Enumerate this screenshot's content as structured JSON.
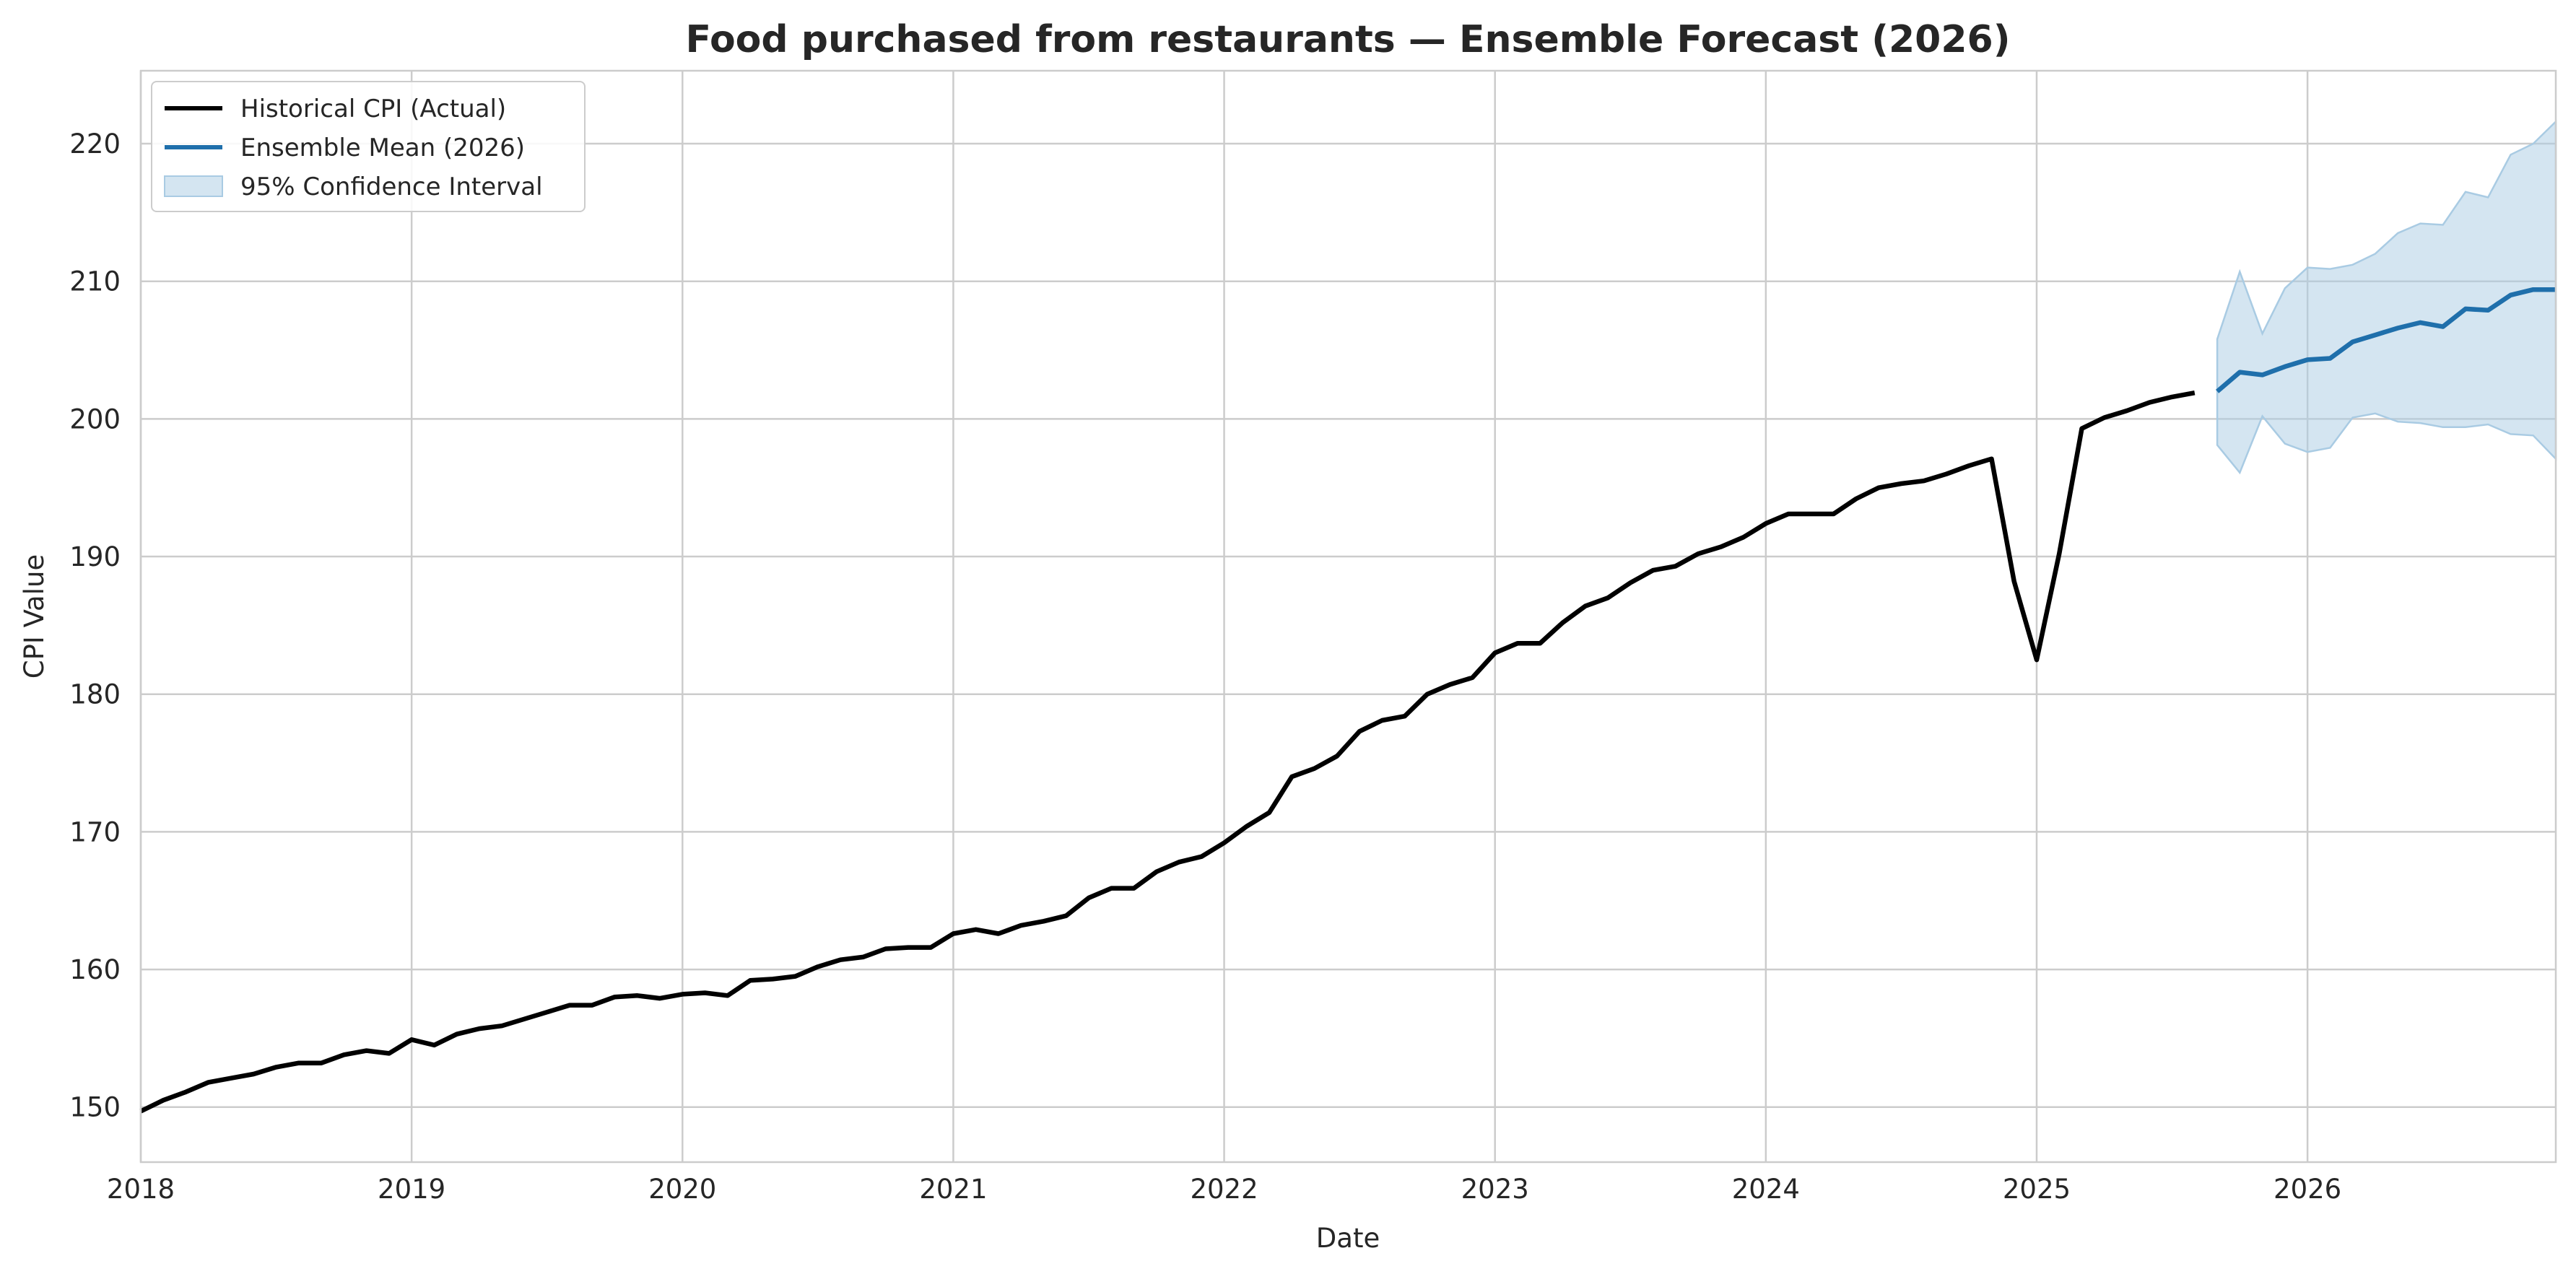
{
  "chart_data": {
    "type": "line",
    "title": "Food purchased from restaurants — Ensemble Forecast (2026)",
    "xlabel": "Date",
    "ylabel": "CPI Value",
    "xlim": [
      "2018-01",
      "2026-12"
    ],
    "ylim": [
      146,
      225.3
    ],
    "grid": true,
    "legend_position": "top-left",
    "x_ticks": [
      "2018",
      "2019",
      "2020",
      "2021",
      "2022",
      "2023",
      "2024",
      "2025",
      "2026"
    ],
    "y_ticks": [
      150,
      160,
      170,
      180,
      190,
      200,
      210,
      220
    ],
    "series": [
      {
        "name": "Historical CPI (Actual)",
        "color": "#000000",
        "style": "line",
        "points": [
          [
            "2018-01",
            149.7
          ],
          [
            "2018-02",
            150.5
          ],
          [
            "2018-03",
            151.1
          ],
          [
            "2018-04",
            151.8
          ],
          [
            "2018-05",
            152.1
          ],
          [
            "2018-06",
            152.4
          ],
          [
            "2018-07",
            152.9
          ],
          [
            "2018-08",
            153.2
          ],
          [
            "2018-09",
            153.2
          ],
          [
            "2018-10",
            153.8
          ],
          [
            "2018-11",
            154.1
          ],
          [
            "2018-12",
            153.9
          ],
          [
            "2019-01",
            154.9
          ],
          [
            "2019-02",
            154.5
          ],
          [
            "2019-03",
            155.3
          ],
          [
            "2019-04",
            155.7
          ],
          [
            "2019-05",
            155.9
          ],
          [
            "2019-06",
            156.4
          ],
          [
            "2019-07",
            156.9
          ],
          [
            "2019-08",
            157.4
          ],
          [
            "2019-09",
            157.4
          ],
          [
            "2019-10",
            158.0
          ],
          [
            "2019-11",
            158.1
          ],
          [
            "2019-12",
            157.9
          ],
          [
            "2020-01",
            158.2
          ],
          [
            "2020-02",
            158.3
          ],
          [
            "2020-03",
            158.1
          ],
          [
            "2020-04",
            159.2
          ],
          [
            "2020-05",
            159.3
          ],
          [
            "2020-06",
            159.5
          ],
          [
            "2020-07",
            160.2
          ],
          [
            "2020-08",
            160.7
          ],
          [
            "2020-09",
            160.9
          ],
          [
            "2020-10",
            161.5
          ],
          [
            "2020-11",
            161.6
          ],
          [
            "2020-12",
            161.6
          ],
          [
            "2021-01",
            162.6
          ],
          [
            "2021-02",
            162.9
          ],
          [
            "2021-03",
            162.6
          ],
          [
            "2021-04",
            163.2
          ],
          [
            "2021-05",
            163.5
          ],
          [
            "2021-06",
            163.9
          ],
          [
            "2021-07",
            165.2
          ],
          [
            "2021-08",
            165.9
          ],
          [
            "2021-09",
            165.9
          ],
          [
            "2021-10",
            167.1
          ],
          [
            "2021-11",
            167.8
          ],
          [
            "2021-12",
            168.2
          ],
          [
            "2022-01",
            169.2
          ],
          [
            "2022-02",
            170.4
          ],
          [
            "2022-03",
            171.4
          ],
          [
            "2022-04",
            174.0
          ],
          [
            "2022-05",
            174.6
          ],
          [
            "2022-06",
            175.5
          ],
          [
            "2022-07",
            177.3
          ],
          [
            "2022-08",
            178.1
          ],
          [
            "2022-09",
            178.4
          ],
          [
            "2022-10",
            180.0
          ],
          [
            "2022-11",
            180.7
          ],
          [
            "2022-12",
            181.2
          ],
          [
            "2023-01",
            183.0
          ],
          [
            "2023-02",
            183.7
          ],
          [
            "2023-03",
            183.7
          ],
          [
            "2023-04",
            185.2
          ],
          [
            "2023-05",
            186.4
          ],
          [
            "2023-06",
            187.0
          ],
          [
            "2023-07",
            188.1
          ],
          [
            "2023-08",
            189.0
          ],
          [
            "2023-09",
            189.3
          ],
          [
            "2023-10",
            190.2
          ],
          [
            "2023-11",
            190.7
          ],
          [
            "2023-12",
            191.4
          ],
          [
            "2024-01",
            192.4
          ],
          [
            "2024-02",
            193.1
          ],
          [
            "2024-03",
            193.1
          ],
          [
            "2024-04",
            193.1
          ],
          [
            "2024-05",
            194.2
          ],
          [
            "2024-06",
            195.0
          ],
          [
            "2024-07",
            195.3
          ],
          [
            "2024-08",
            195.5
          ],
          [
            "2024-09",
            196.0
          ],
          [
            "2024-10",
            196.6
          ],
          [
            "2024-11",
            197.1
          ],
          [
            "2024-12",
            188.2
          ],
          [
            "2025-01",
            182.5
          ],
          [
            "2025-02",
            190.2
          ],
          [
            "2025-03",
            199.3
          ],
          [
            "2025-04",
            200.1
          ],
          [
            "2025-05",
            200.6
          ],
          [
            "2025-06",
            201.2
          ],
          [
            "2025-07",
            201.6
          ],
          [
            "2025-08",
            201.9
          ]
        ]
      },
      {
        "name": "Ensemble Mean (2026)",
        "color": "#1f6fab",
        "style": "line",
        "points": [
          [
            "2025-09",
            202.0
          ],
          [
            "2025-10",
            203.4
          ],
          [
            "2025-11",
            203.2
          ],
          [
            "2025-12",
            203.8
          ],
          [
            "2026-01",
            204.3
          ],
          [
            "2026-02",
            204.4
          ],
          [
            "2026-03",
            205.6
          ],
          [
            "2026-04",
            206.1
          ],
          [
            "2026-05",
            206.6
          ],
          [
            "2026-06",
            207.0
          ],
          [
            "2026-07",
            206.7
          ],
          [
            "2026-08",
            208.0
          ],
          [
            "2026-09",
            207.9
          ],
          [
            "2026-10",
            209.0
          ],
          [
            "2026-11",
            209.4
          ],
          [
            "2026-12",
            209.4
          ]
        ]
      },
      {
        "name": "95% Confidence Interval",
        "color": "#a9cbe3",
        "style": "band",
        "points": [
          [
            "2025-09",
            198.1,
            205.8
          ],
          [
            "2025-10",
            196.1,
            210.7
          ],
          [
            "2025-11",
            200.2,
            206.2
          ],
          [
            "2025-12",
            198.2,
            209.5
          ],
          [
            "2026-01",
            197.6,
            211.0
          ],
          [
            "2026-02",
            197.9,
            210.9
          ],
          [
            "2026-03",
            200.1,
            211.2
          ],
          [
            "2026-04",
            200.4,
            212.0
          ],
          [
            "2026-05",
            199.8,
            213.5
          ],
          [
            "2026-06",
            199.7,
            214.2
          ],
          [
            "2026-07",
            199.4,
            214.1
          ],
          [
            "2026-08",
            199.4,
            216.5
          ],
          [
            "2026-09",
            199.6,
            216.1
          ],
          [
            "2026-10",
            198.9,
            219.2
          ],
          [
            "2026-11",
            198.8,
            220.0
          ],
          [
            "2026-12",
            197.1,
            221.6
          ]
        ]
      }
    ]
  }
}
